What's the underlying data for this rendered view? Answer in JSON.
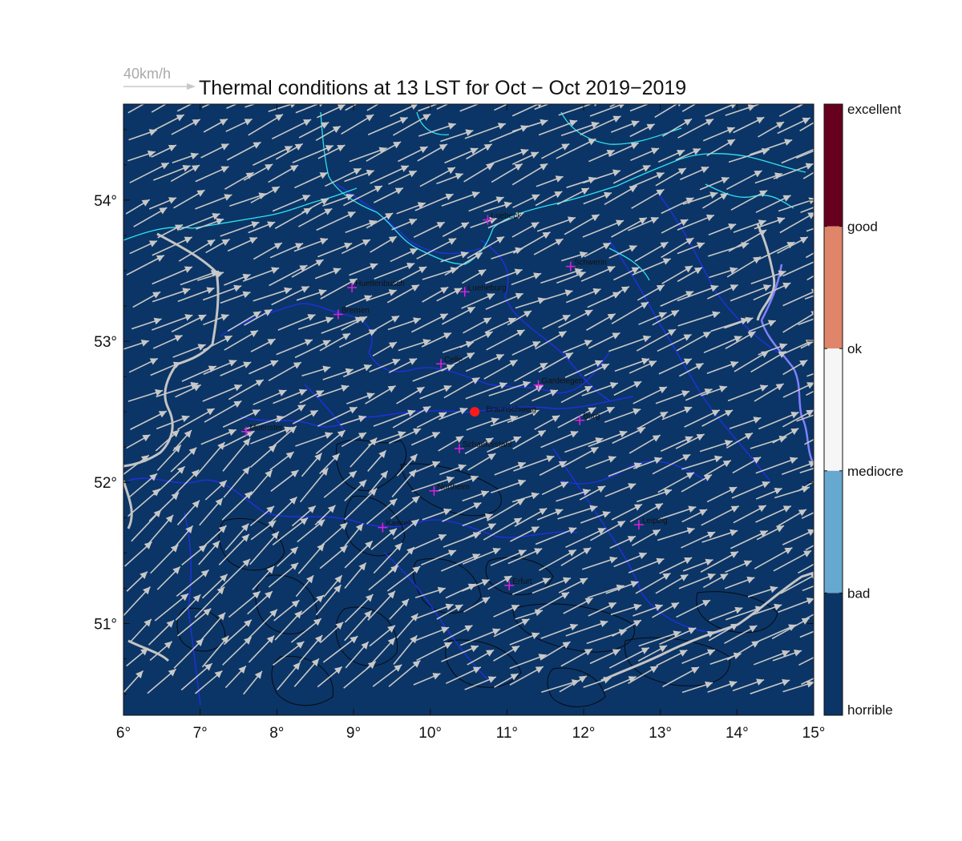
{
  "title": "Thermal conditions at 13 LST for Oct − Oct  2019−2019",
  "scale_label": "40km/h",
  "colors": {
    "ocean": "#0b3566",
    "arrow": "#c8c8c8",
    "coast": "#2fe3f0",
    "borders": "#2030e0",
    "country": "#c4c4c4",
    "contour": "#050a14",
    "city_marker": "#e020e0",
    "home": "#ff1a1a"
  },
  "map": {
    "lon_range": [
      6,
      15
    ],
    "lat_range": [
      50.35,
      54.68
    ],
    "x_ticks": [
      "6°",
      "7°",
      "8°",
      "9°",
      "10°",
      "11°",
      "12°",
      "13°",
      "14°",
      "15°"
    ],
    "y_ticks": [
      "51°",
      "52°",
      "53°",
      "54°"
    ],
    "wind_direction": "from south-west",
    "cities": [
      {
        "name": "Luebeck",
        "lon": 10.75,
        "lat": 53.86
      },
      {
        "name": "Schwerin",
        "lon": 11.83,
        "lat": 53.53
      },
      {
        "name": "Huettenbusch",
        "lon": 8.98,
        "lat": 53.38
      },
      {
        "name": "Lueneburg",
        "lon": 10.45,
        "lat": 53.35
      },
      {
        "name": "Bremen",
        "lon": 8.8,
        "lat": 53.19
      },
      {
        "name": "Celle",
        "lon": 10.14,
        "lat": 52.84
      },
      {
        "name": "Gardelegen",
        "lon": 11.41,
        "lat": 52.69
      },
      {
        "name": "Burg",
        "lon": 11.95,
        "lat": 52.44
      },
      {
        "name": "Muenster",
        "lon": 7.6,
        "lat": 52.36
      },
      {
        "name": "Schaeferstahl",
        "lon": 10.38,
        "lat": 52.24
      },
      {
        "name": "Northeim",
        "lon": 10.05,
        "lat": 51.94
      },
      {
        "name": "Kassel",
        "lon": 9.38,
        "lat": 51.68
      },
      {
        "name": "Leipzig",
        "lon": 12.72,
        "lat": 51.7
      },
      {
        "name": "Erfurt",
        "lon": 11.03,
        "lat": 51.27
      }
    ],
    "home": {
      "name": "Braunschweig",
      "lon": 10.58,
      "lat": 52.5
    }
  },
  "colorbar": {
    "categories": [
      {
        "label": "excellent",
        "color": "#67001f"
      },
      {
        "label": "good",
        "color": "#e0856a"
      },
      {
        "label": "ok",
        "color": "#f6f6f6"
      },
      {
        "label": "mediocre",
        "color": "#f6f6f6"
      },
      {
        "label": "bad",
        "color": "#66a8d0"
      },
      {
        "label": "horrible",
        "color": "#0b3566"
      }
    ],
    "band_colors": [
      "#67001f",
      "#e0856a",
      "#f6f6f6",
      "#66a8d0",
      "#0b3566"
    ]
  }
}
